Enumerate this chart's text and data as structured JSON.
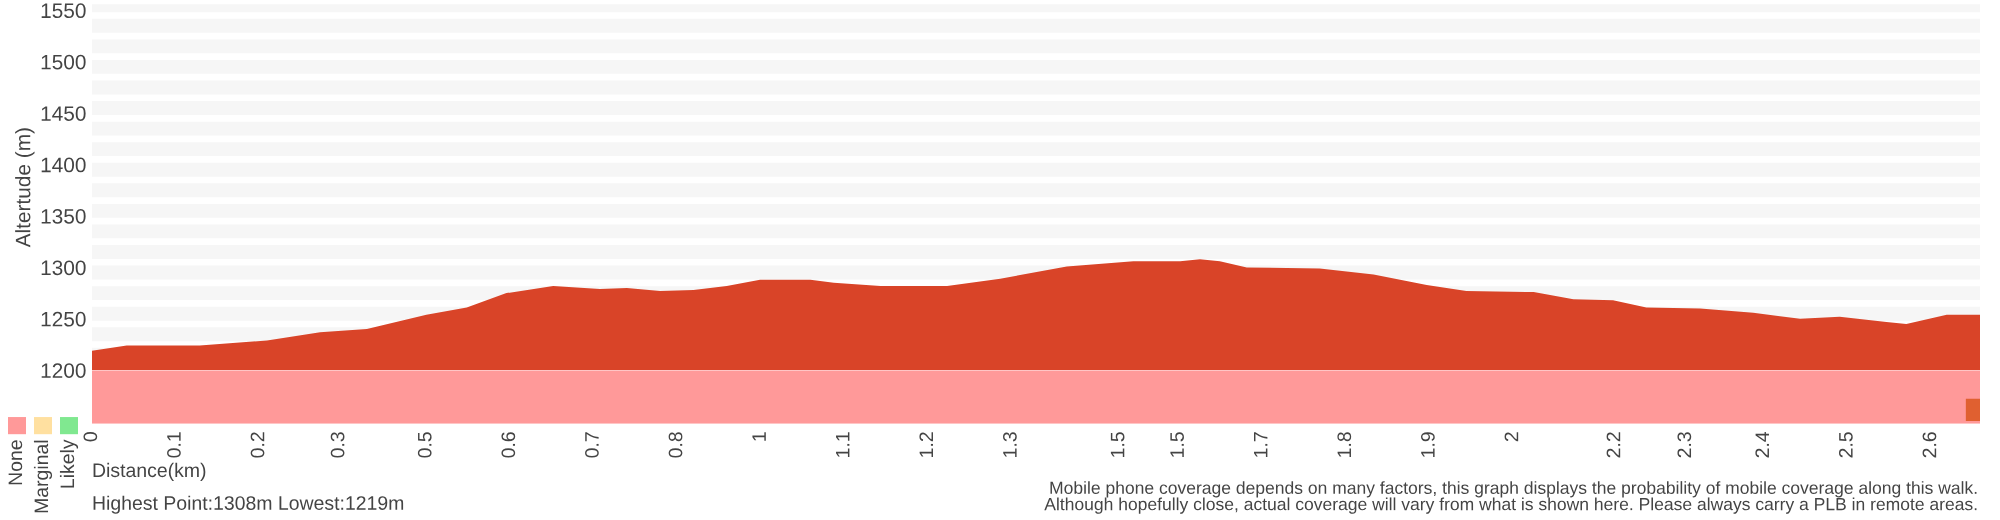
{
  "chart_data": [
    {
      "type": "area",
      "ylabel": "Altertude (m)",
      "xlabel": "Distance(km)",
      "x": [
        0,
        0.049,
        0.152,
        0.247,
        0.322,
        0.388,
        0.472,
        0.529,
        0.585,
        0.651,
        0.717,
        0.755,
        0.802,
        0.849,
        0.896,
        0.943,
        1.014,
        1.047,
        1.113,
        1.207,
        1.282,
        1.376,
        1.47,
        1.536,
        1.564,
        1.592,
        1.63,
        1.733,
        1.809,
        1.884,
        1.94,
        2.035,
        2.091,
        2.147,
        2.194,
        2.27,
        2.345,
        2.411,
        2.467,
        2.533,
        2.561,
        2.618,
        2.665
      ],
      "series": [
        {
          "color": "#d94428",
          "values": [
            1219,
            1224,
            1224,
            1229,
            1237,
            1240,
            1254,
            1261,
            1275,
            1282,
            1279,
            1280,
            1277,
            1278,
            1282,
            1288,
            1288,
            1285,
            1282,
            1282,
            1289,
            1301,
            1306,
            1306,
            1308,
            1306,
            1300,
            1299,
            1293,
            1283,
            1277,
            1276,
            1269,
            1268,
            1261,
            1260,
            1256,
            1250,
            1252,
            1247,
            1245,
            1254,
            1254
          ]
        }
      ],
      "xlim": [
        0,
        2.665
      ],
      "ylim": [
        1200,
        1556
      ],
      "xticks": [
        {
          "value": 0,
          "label": "0"
        },
        {
          "value": 0.118,
          "label": "0.1"
        },
        {
          "value": 0.236,
          "label": "0.2"
        },
        {
          "value": 0.349,
          "label": "0.3"
        },
        {
          "value": 0.472,
          "label": "0.5"
        },
        {
          "value": 0.59,
          "label": "0.6"
        },
        {
          "value": 0.708,
          "label": "0.7"
        },
        {
          "value": 0.826,
          "label": "0.8"
        },
        {
          "value": 0.944,
          "label": "1"
        },
        {
          "value": 1.062,
          "label": "1.1"
        },
        {
          "value": 1.18,
          "label": "1.2"
        },
        {
          "value": 1.298,
          "label": "1.3"
        },
        {
          "value": 1.45,
          "label": "1.5"
        },
        {
          "value": 1.534,
          "label": "1.5"
        },
        {
          "value": 1.652,
          "label": "1.7"
        },
        {
          "value": 1.77,
          "label": "1.8"
        },
        {
          "value": 1.888,
          "label": "1.9"
        },
        {
          "value": 2.006,
          "label": "2"
        },
        {
          "value": 2.15,
          "label": "2.2"
        },
        {
          "value": 2.25,
          "label": "2.3"
        },
        {
          "value": 2.36,
          "label": "2.4"
        },
        {
          "value": 2.478,
          "label": "2.5"
        },
        {
          "value": 2.596,
          "label": "2.6"
        }
      ],
      "yticks": [
        1200,
        1250,
        1300,
        1350,
        1400,
        1450,
        1500,
        1550
      ],
      "grid": "y",
      "annotations": [
        "Highest Point:1308m Lowest:1219m",
        "Mobile phone coverage depends on many factors, this graph displays the probability of mobile coverage along this walk.\nAlthough hopefully close, actual coverage will vary from what is shown here. Please always carry a PLB in remote areas."
      ]
    },
    {
      "type": "other",
      "categories": [
        "None",
        "Marginal",
        "Likely"
      ],
      "colors": [
        "#ff9999",
        "#ffe0a0",
        "#80e890"
      ]
    }
  ]
}
